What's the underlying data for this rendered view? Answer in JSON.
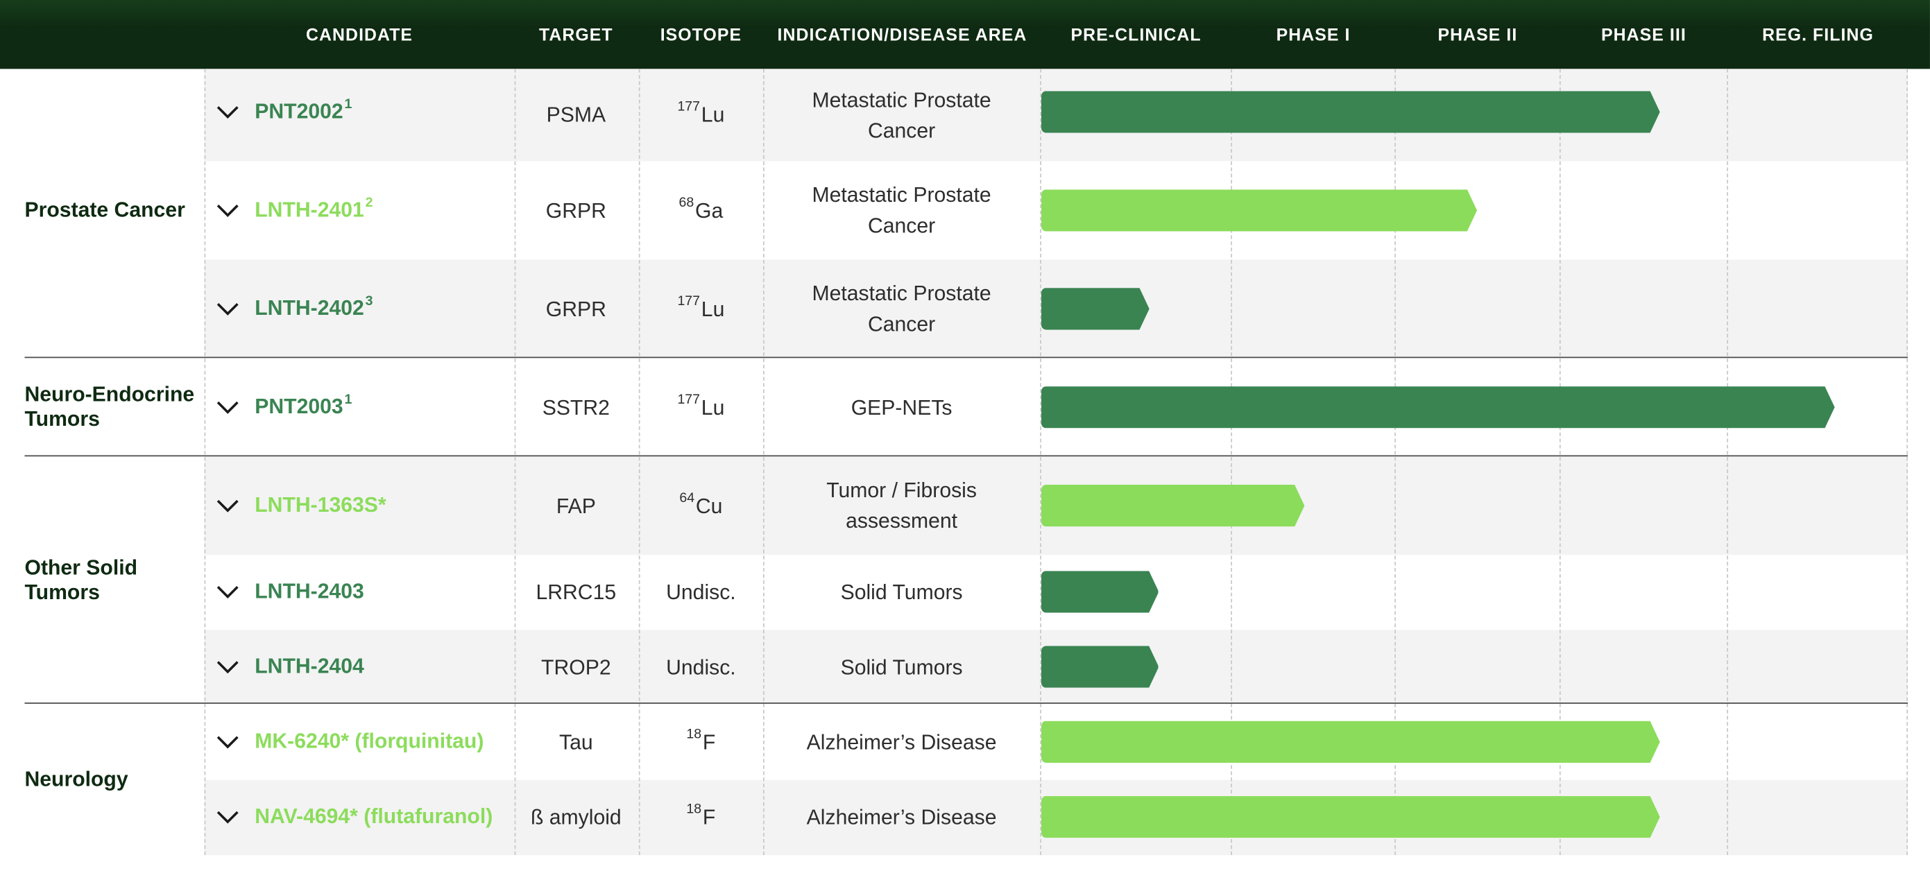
{
  "header": {
    "columns": [
      "CANDIDATE",
      "TARGET",
      "ISOTOPE",
      "INDICATION/DISEASE AREA",
      "PRE-CLINICAL",
      "PHASE I",
      "PHASE II",
      "PHASE III",
      "REG. FILING"
    ]
  },
  "groups": [
    {
      "label": "Prostate Cancer"
    },
    {
      "label": "Neuro-Endocrine Tumors"
    },
    {
      "label": "Other Solid Tumors"
    },
    {
      "label": "Neurology"
    }
  ],
  "rows": [
    {
      "candidate": "PNT2002",
      "candidate_sup": "1",
      "target": "PSMA",
      "iso_mass": "177",
      "iso_elem": "Lu",
      "indication": "Metastatic Prostate Cancer",
      "progress_phase": 3.6,
      "bar_color": "#3a8452",
      "name_color": "#3a8452"
    },
    {
      "candidate": "LNTH-2401",
      "candidate_sup": "2",
      "target": "GRPR",
      "iso_mass": "68",
      "iso_elem": "Ga",
      "indication": "Metastatic Prostate Cancer",
      "progress_phase": 2.5,
      "bar_color": "#8cdc5c",
      "name_color": "#8cdc5c"
    },
    {
      "candidate": "LNTH-2402",
      "candidate_sup": "3",
      "target": "GRPR",
      "iso_mass": "177",
      "iso_elem": "Lu",
      "indication": "Metastatic Prostate Cancer",
      "progress_phase": 0.57,
      "bar_color": "#3a8452",
      "name_color": "#3a8452"
    },
    {
      "candidate": "PNT2003",
      "candidate_sup": "1",
      "target": "SSTR2",
      "iso_mass": "177",
      "iso_elem": "Lu",
      "indication": "GEP-NETs",
      "progress_phase": 4.6,
      "bar_color": "#3a8452",
      "name_color": "#3a8452"
    },
    {
      "candidate": "LNTH-1363S*",
      "candidate_sup": "",
      "target": "FAP",
      "iso_mass": "64",
      "iso_elem": "Cu",
      "indication": "Tumor / Fibrosis assessment",
      "progress_phase": 1.45,
      "bar_color": "#8cdc5c",
      "name_color": "#8cdc5c"
    },
    {
      "candidate": "LNTH-2403",
      "candidate_sup": "",
      "target": "LRRC15",
      "iso_mass": "",
      "iso_elem": "Undisc.",
      "indication": "Solid Tumors",
      "progress_phase": 0.62,
      "bar_color": "#3a8452",
      "name_color": "#3a8452"
    },
    {
      "candidate": "LNTH-2404",
      "candidate_sup": "",
      "target": "TROP2",
      "iso_mass": "",
      "iso_elem": "Undisc.",
      "indication": "Solid Tumors",
      "progress_phase": 0.62,
      "bar_color": "#3a8452",
      "name_color": "#3a8452"
    },
    {
      "candidate": "MK-6240* (florquinitau)",
      "candidate_sup": "",
      "target": "Tau",
      "iso_mass": "18",
      "iso_elem": "F",
      "indication": "Alzheimer’s Disease",
      "progress_phase": 3.6,
      "bar_color": "#8cdc5c",
      "name_color": "#8cdc5c"
    },
    {
      "candidate": "NAV-4694* (flutafuranol)",
      "candidate_sup": "",
      "target": "ß amyloid",
      "iso_mass": "18",
      "iso_elem": "F",
      "indication": "Alzheimer’s Disease",
      "progress_phase": 3.6,
      "bar_color": "#8cdc5c",
      "name_color": "#8cdc5c"
    }
  ],
  "icons": {
    "expand": "chevron-down-icon"
  }
}
